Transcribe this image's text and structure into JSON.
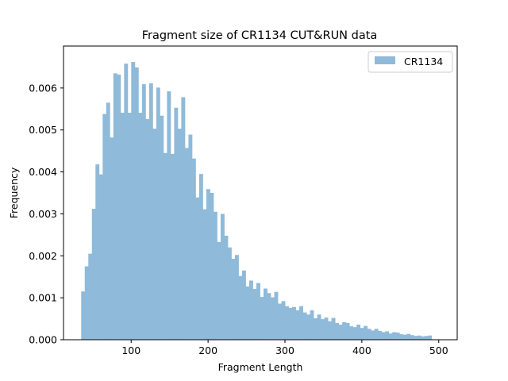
{
  "chart_data": {
    "type": "bar",
    "title": "Fragment size of CR1134 CUT&RUN data",
    "xlabel": "Fragment Length",
    "ylabel": "Frequency",
    "xlim": [
      12,
      524
    ],
    "ylim": [
      0,
      0.007
    ],
    "xticks": [
      100,
      200,
      300,
      400,
      500
    ],
    "xtick_labels": [
      "100",
      "200",
      "300",
      "400",
      "500"
    ],
    "yticks": [
      0,
      0.001,
      0.002,
      0.003,
      0.004,
      0.005,
      0.006
    ],
    "ytick_labels": [
      "0.000",
      "0.001",
      "0.002",
      "0.003",
      "0.004",
      "0.005",
      "0.006"
    ],
    "grid": false,
    "legend_position": "top-right",
    "bin_start": 35,
    "bin_width": 4.65,
    "series": [
      {
        "name": "CR1134",
        "color": "#8fbad9",
        "values": [
          0.00115,
          0.00175,
          0.00205,
          0.00312,
          0.00418,
          0.00394,
          0.00538,
          0.00565,
          0.00482,
          0.00635,
          0.00632,
          0.00541,
          0.00658,
          0.00541,
          0.00662,
          0.00649,
          0.00541,
          0.00609,
          0.00526,
          0.00611,
          0.00503,
          0.00601,
          0.00534,
          0.00445,
          0.00592,
          0.00443,
          0.00553,
          0.00503,
          0.00578,
          0.00457,
          0.00489,
          0.00432,
          0.00339,
          0.00395,
          0.00311,
          0.00359,
          0.0035,
          0.00305,
          0.00233,
          0.003,
          0.00248,
          0.0022,
          0.00193,
          0.00202,
          0.00152,
          0.00165,
          0.00127,
          0.00141,
          0.00121,
          0.00135,
          0.00102,
          0.00122,
          0.00111,
          0.00101,
          0.00114,
          0.00086,
          0.00092,
          0.0008,
          0.00076,
          0.00078,
          0.0007,
          0.0008,
          0.00065,
          0.0006,
          0.0007,
          0.00051,
          0.0006,
          0.00049,
          0.00053,
          0.00044,
          0.00052,
          0.0004,
          0.00036,
          0.00042,
          0.0004,
          0.00032,
          0.0003,
          0.00036,
          0.00028,
          0.00033,
          0.00026,
          0.00022,
          0.00026,
          0.00021,
          0.00018,
          0.0002,
          0.00015,
          0.00018,
          0.00017,
          0.00013,
          0.00012,
          0.00014,
          0.00011,
          9e-05,
          0.0001,
          8e-05,
          9e-05,
          0.0001
        ]
      }
    ]
  }
}
